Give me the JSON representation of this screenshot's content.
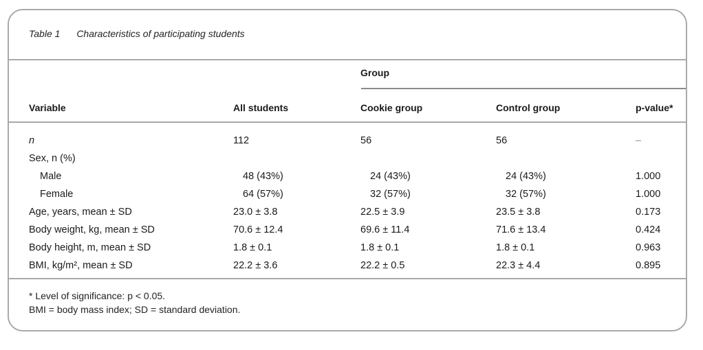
{
  "table": {
    "number": "Table 1",
    "title": "Characteristics of participating students",
    "group_header": "Group",
    "headers": {
      "variable": "Variable",
      "all": "All students",
      "cookie": "Cookie group",
      "control": "Control group",
      "pvalue": "p-value*"
    },
    "rows": [
      {
        "label": "n",
        "italic": true,
        "indent": false,
        "all": "112",
        "cookie": "56",
        "control": "56",
        "p": "–"
      },
      {
        "label": "Sex, n (%)",
        "indent": false,
        "all": "",
        "cookie": "",
        "control": "",
        "p": ""
      },
      {
        "label": "Male",
        "indent": true,
        "all": "48 (43%)",
        "cookie": "24 (43%)",
        "control": "24 (43%)",
        "p": "1.000"
      },
      {
        "label": "Female",
        "indent": true,
        "all": "64 (57%)",
        "cookie": "32 (57%)",
        "control": "32 (57%)",
        "p": "1.000"
      },
      {
        "label": "Age, years, mean ± SD",
        "indent": false,
        "all": "23.0 ± 3.8",
        "cookie": "22.5 ± 3.9",
        "control": "23.5 ± 3.8",
        "p": "0.173"
      },
      {
        "label": "Body weight, kg, mean ± SD",
        "indent": false,
        "all": "70.6 ± 12.4",
        "cookie": "69.6 ± 11.4",
        "control": "71.6 ± 13.4",
        "p": "0.424"
      },
      {
        "label": "Body height, m, mean ± SD",
        "indent": false,
        "all": "1.8 ± 0.1",
        "cookie": "1.8 ± 0.1",
        "control": "1.8 ± 0.1",
        "p": "0.963"
      },
      {
        "label": "BMI, kg/m², mean ± SD",
        "indent": false,
        "all": "22.2 ± 3.6",
        "cookie": "22.2 ± 0.5",
        "control": "22.3 ± 4.4",
        "p": "0.895"
      }
    ],
    "footnotes": [
      "* Level of significance: p < 0.05.",
      "BMI = body mass index; SD = standard deviation."
    ]
  }
}
